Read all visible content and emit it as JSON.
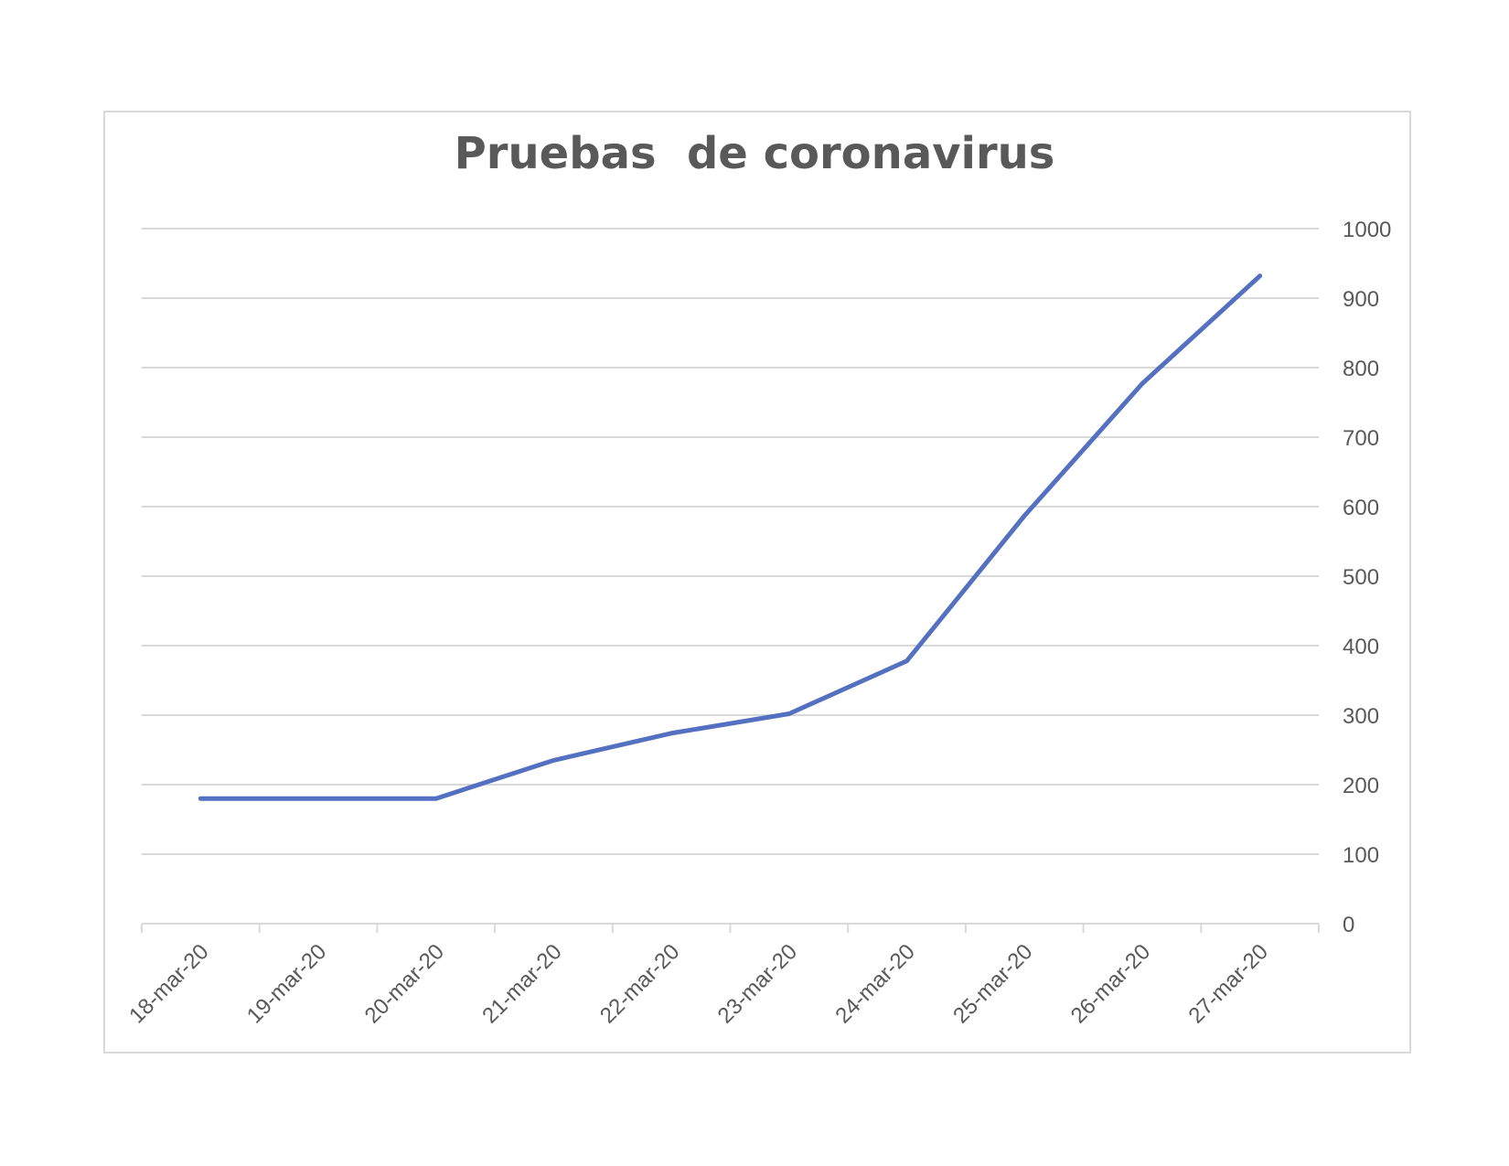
{
  "chart_data": {
    "type": "line",
    "title": "Pruebas  de coronavirus",
    "xlabel": "",
    "ylabel": "",
    "categories": [
      "18-mar-20",
      "19-mar-20",
      "20-mar-20",
      "21-mar-20",
      "22-mar-20",
      "23-mar-20",
      "24-mar-20",
      "25-mar-20",
      "26-mar-20",
      "27-mar-20"
    ],
    "series": [
      {
        "values": [
          180,
          180,
          180,
          235,
          274,
          302,
          378,
          587,
          777,
          932
        ],
        "color": "#5470c1"
      }
    ],
    "ylim": [
      0,
      1000
    ],
    "yticks": [
      0,
      100,
      200,
      300,
      400,
      500,
      600,
      700,
      800,
      900,
      1000
    ],
    "y_axis_side": "right",
    "grid": true,
    "legend": "none"
  }
}
